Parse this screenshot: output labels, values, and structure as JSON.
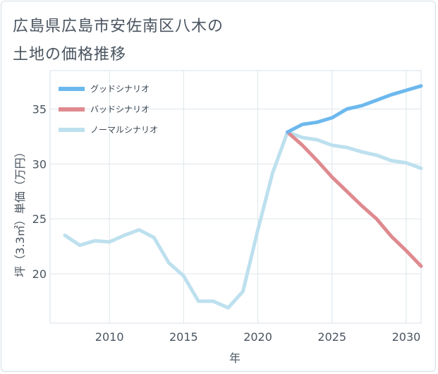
{
  "chart_data": {
    "type": "line",
    "title_lines": [
      "広島県広島市安佐南区八木の",
      "土地の価格推移"
    ],
    "xlabel": "年",
    "ylabel": "坪（3.3㎡）単価（万円）",
    "xlim": [
      2006,
      2031
    ],
    "ylim": [
      15.5,
      38.5
    ],
    "xticks": [
      2010,
      2015,
      2020,
      2025,
      2030
    ],
    "yticks": [
      20,
      25,
      30,
      35
    ],
    "grid": true,
    "legend_position": "top-left",
    "series": [
      {
        "name": "グッドシナリオ",
        "color": "#6cb8ee",
        "x": [
          2022,
          2023,
          2024,
          2025,
          2026,
          2027,
          2028,
          2029,
          2030,
          2031
        ],
        "values": [
          32.9,
          33.6,
          33.8,
          34.2,
          35.0,
          35.3,
          35.8,
          36.3,
          36.7,
          37.1
        ]
      },
      {
        "name": "バッドシナリオ",
        "color": "#de8a8f",
        "x": [
          2022,
          2023,
          2024,
          2025,
          2026,
          2027,
          2028,
          2029,
          2030,
          2031
        ],
        "values": [
          32.9,
          31.7,
          30.3,
          28.8,
          27.5,
          26.2,
          25.0,
          23.4,
          22.1,
          20.7
        ]
      },
      {
        "name": "ノーマルシナリオ",
        "color": "#bde0ee",
        "x": [
          2007,
          2008,
          2009,
          2010,
          2011,
          2012,
          2013,
          2014,
          2015,
          2016,
          2017,
          2018,
          2019,
          2020,
          2021,
          2022,
          2023,
          2024,
          2025,
          2026,
          2027,
          2028,
          2029,
          2030,
          2031
        ],
        "values": [
          23.5,
          22.6,
          23.0,
          22.9,
          23.5,
          24.0,
          23.3,
          21.0,
          19.8,
          17.5,
          17.5,
          16.9,
          18.4,
          24.0,
          29.2,
          32.9,
          32.4,
          32.2,
          31.7,
          31.5,
          31.1,
          30.8,
          30.3,
          30.1,
          29.6
        ]
      }
    ]
  }
}
